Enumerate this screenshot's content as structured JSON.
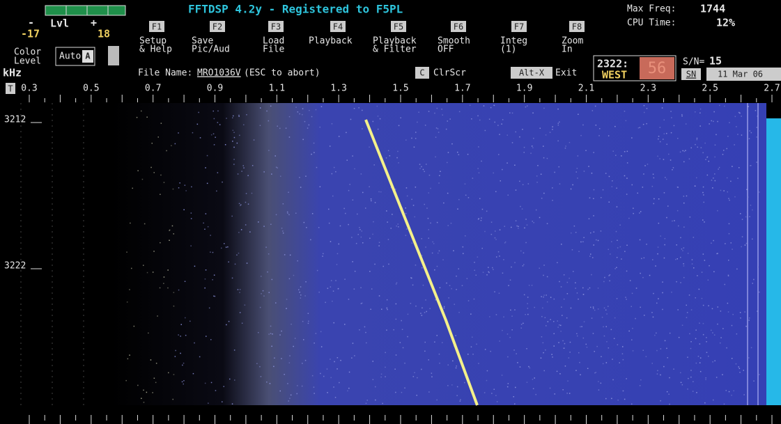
{
  "header": {
    "title": "FFTDSP 4.2y - Registered to F5PL",
    "max_freq_label": "Max Freq:",
    "max_freq": "1744",
    "cpu_label": "CPU Time:",
    "cpu": "12%"
  },
  "level": {
    "minus": "-",
    "label": "Lvl",
    "plus": "+",
    "min": "-17",
    "max": "18",
    "color_label": [
      "Color",
      "Level"
    ],
    "auto": "Auto",
    "a": "A"
  },
  "function_keys": [
    {
      "key": "F1",
      "label": [
        "Setup",
        "& Help"
      ]
    },
    {
      "key": "F2",
      "label": [
        "Save",
        "Pic/Aud"
      ]
    },
    {
      "key": "F3",
      "label": [
        "Load",
        "File"
      ]
    },
    {
      "key": "F4",
      "label": [
        "Playback"
      ]
    },
    {
      "key": "F5",
      "label": [
        "Playback",
        "& Filter"
      ]
    },
    {
      "key": "F6",
      "label": [
        "Smooth",
        "OFF"
      ]
    },
    {
      "key": "F7",
      "label": [
        "Integ",
        "(1)"
      ]
    },
    {
      "key": "F8",
      "label": [
        "Zoom",
        "In"
      ]
    }
  ],
  "file": {
    "label": "File Name:",
    "name": "MRO1036V",
    "hint": "(ESC to abort)"
  },
  "clear": {
    "key": "C",
    "label": "ClrScr"
  },
  "exit": {
    "key": "Alt-X",
    "label": "Exit"
  },
  "status": {
    "time": "2322:",
    "seconds": "56",
    "direction": "WEST",
    "sn_label": "S/N=",
    "sn_value": "15",
    "sn_button": "SN",
    "date": "11 Mar 06"
  },
  "axis": {
    "unit": "kHz",
    "t_button": "T",
    "ticks": [
      "0.3",
      "0.5",
      "0.7",
      "0.9",
      "1.1",
      "1.3",
      "1.5",
      "1.7",
      "1.9",
      "2.1",
      "2.3",
      "2.5",
      "2.7"
    ]
  },
  "time_marks": [
    "3212",
    "3222"
  ]
}
